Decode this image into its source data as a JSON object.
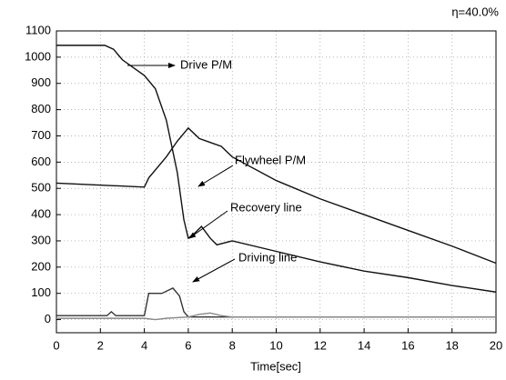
{
  "chart_data": {
    "type": "line",
    "annotation": "η=40.0%",
    "x_label": "Time[sec]",
    "xlim": [
      0,
      20
    ],
    "xticks": [
      0,
      2,
      4,
      6,
      8,
      10,
      12,
      14,
      16,
      18,
      20
    ],
    "ylim": [
      -50,
      1100
    ],
    "yticks": [
      0,
      100,
      200,
      300,
      400,
      500,
      600,
      700,
      800,
      900,
      1000,
      1100
    ],
    "grid": true,
    "series": [
      {
        "name": "Drive P/M",
        "color": "#111111",
        "x": [
          0,
          2.2,
          2.6,
          3,
          4,
          4.5,
          5,
          5.5,
          5.8,
          6,
          6.3,
          6.6,
          7,
          7.3,
          8,
          10,
          12,
          14,
          16,
          18,
          20
        ],
        "values": [
          1045,
          1045,
          1030,
          990,
          930,
          880,
          760,
          560,
          380,
          310,
          330,
          355,
          310,
          285,
          300,
          260,
          220,
          185,
          160,
          130,
          105
        ]
      },
      {
        "name": "Flywheel P/M",
        "color": "#111111",
        "x": [
          0,
          4,
          4.2,
          5,
          5.5,
          6,
          6.5,
          7,
          7.5,
          8,
          10,
          12,
          14,
          16,
          18,
          20
        ],
        "values": [
          520,
          505,
          540,
          620,
          680,
          730,
          690,
          675,
          660,
          620,
          530,
          460,
          400,
          340,
          280,
          215
        ]
      },
      {
        "name": "Recovery line",
        "color": "#333333",
        "x": [
          0,
          2.3,
          2.5,
          2.7,
          4,
          4.2,
          4.8,
          5.3,
          5.6,
          5.8,
          6,
          8,
          20
        ],
        "values": [
          15,
          15,
          30,
          15,
          15,
          100,
          100,
          120,
          90,
          30,
          10,
          10,
          10
        ]
      },
      {
        "name": "Driving line",
        "color": "#888888",
        "x": [
          0,
          4,
          4.5,
          5,
          6,
          6.5,
          7,
          7.5,
          8,
          20
        ],
        "values": [
          5,
          5,
          0,
          5,
          10,
          20,
          25,
          15,
          10,
          10
        ]
      }
    ]
  }
}
